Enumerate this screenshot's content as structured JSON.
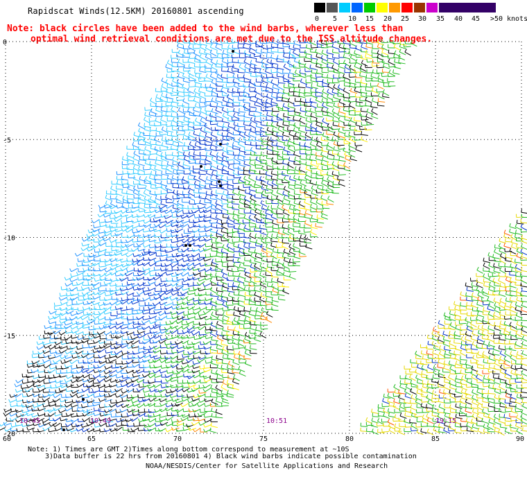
{
  "title": "Rapidscat Winds(12.5KM) 20160801 ascending",
  "note": {
    "line1": "Note: black circles have been added to the wind barbs, wherever less than",
    "line2": "optimal wind retrieval conditions are met due to the ISS altitude changes."
  },
  "scale": {
    "labels": [
      "0",
      "5",
      "10",
      "15",
      "20",
      "25",
      "30",
      "35",
      "40",
      "45",
      ">50"
    ],
    "unit": "knots",
    "colors": [
      "#000000",
      "#555555",
      "#00ccff",
      "#0066ff",
      "#00cc00",
      "#ffff00",
      "#ff9900",
      "#ff0000",
      "#993300",
      "#cc00cc",
      "#330066"
    ]
  },
  "map": {
    "x_labels": [
      "60",
      "65",
      "70",
      "75",
      "80",
      "85",
      "90"
    ],
    "y_labels": [
      "0",
      "-5",
      "-10",
      "-15",
      "-20"
    ],
    "time_labels": [
      "10:45",
      "10:49",
      "10:51",
      "19:15"
    ]
  },
  "footer": {
    "line1": "Note: 1) Times are GMT 2)Times along bottom correspond to measurement at ~10S",
    "line2": "3)Data buffer is 22 hrs from 20160801 4) Black wind barbs indicate possible contamination",
    "line3": "NOAA/NESDIS/Center for Satellite Applications and Research"
  }
}
